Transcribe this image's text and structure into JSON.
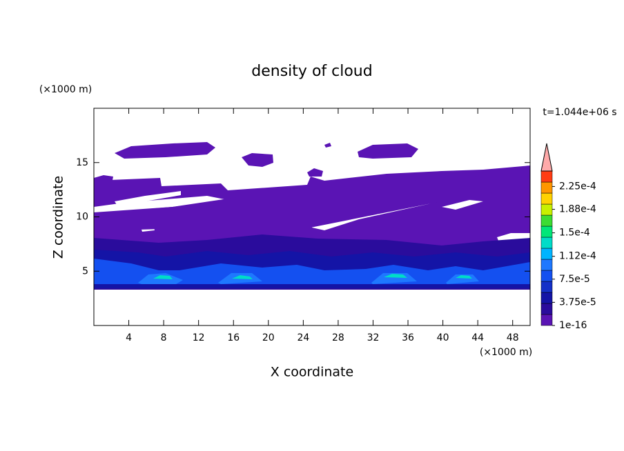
{
  "chart_data": {
    "type": "contour",
    "title": "density of cloud",
    "xlabel": "X coordinate",
    "ylabel": "Z coordinate",
    "xunit": "(×1000 m)",
    "yunit": "(×1000 m)",
    "annotation": "t=1.044e+06 s",
    "xlim": [
      0,
      50
    ],
    "xticks": [
      4,
      8,
      12,
      16,
      20,
      24,
      28,
      32,
      36,
      40,
      44,
      48
    ],
    "ylim": [
      0,
      20
    ],
    "yticks": [
      5,
      10,
      15
    ],
    "colorbar": {
      "clim": [
        1e-16,
        0.00025
      ],
      "ticks": [
        {
          "value": 1e-16,
          "label": "1e-16"
        },
        {
          "value": 3.75e-05,
          "label": "3.75e-5"
        },
        {
          "value": 7.5e-05,
          "label": "7.5e-5"
        },
        {
          "value": 0.000112,
          "label": "1.12e-4"
        },
        {
          "value": 0.00015,
          "label": "1.5e-4"
        },
        {
          "value": 0.000188,
          "label": "1.88e-4"
        },
        {
          "value": 0.000225,
          "label": "2.25e-4"
        }
      ],
      "colors": [
        "#5a14b4",
        "#2a0c9c",
        "#1414a6",
        "#1430c8",
        "#1450f0",
        "#1e78ff",
        "#00b4ff",
        "#00dcc8",
        "#00e678",
        "#3cdc32",
        "#c8f000",
        "#ffd200",
        "#ff9600",
        "#ff3c14"
      ],
      "over_color": "#ffaaaa"
    }
  }
}
